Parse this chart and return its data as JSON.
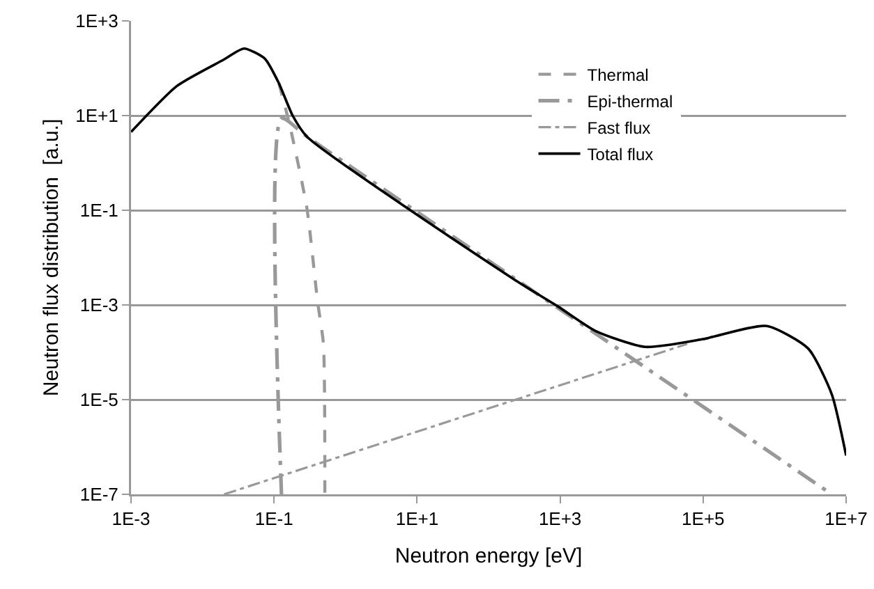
{
  "chart_data": {
    "type": "line",
    "xlabel": "Neutron energy [eV]",
    "ylabel": "Neutron flux distribution  [a.u.]",
    "log": "xy",
    "grid": "y",
    "legend": "top right",
    "marker": "none",
    "xlim": [
      0.001,
      10000000
    ],
    "ylim": [
      1e-07,
      1000
    ],
    "xticks": [
      {
        "value": 0.001,
        "label": "1E-3"
      },
      {
        "value": 0.1,
        "label": "1E-1"
      },
      {
        "value": 10,
        "label": "1E+1"
      },
      {
        "value": 1000,
        "label": "1E+3"
      },
      {
        "value": 100000,
        "label": "1E+5"
      },
      {
        "value": 10000000,
        "label": "1E+7"
      }
    ],
    "yticks": [
      {
        "value": 1e-07,
        "label": "1E-7"
      },
      {
        "value": 1e-05,
        "label": "1E-5"
      },
      {
        "value": 0.001,
        "label": "1E-3"
      },
      {
        "value": 0.1,
        "label": "1E-1"
      },
      {
        "value": 10,
        "label": "1E+1"
      },
      {
        "value": 1000,
        "label": "1E+3"
      }
    ],
    "series": [
      {
        "name": "Thermal",
        "color": "#999999",
        "line_style": "dashed",
        "x": [
          0.117,
          0.166,
          0.288,
          0.407,
          0.49,
          0.513
        ],
        "values": [
          48,
          6.2,
          0.11,
          0.00115,
          0.00015,
          1e-07
        ]
      },
      {
        "name": "Epi-thermal",
        "color": "#999999",
        "line_style": "longdashdot",
        "x": [
          0.127,
          0.127,
          0.288,
          6300000
        ],
        "values": [
          1e-07,
          8.7,
          3.6,
          1e-07
        ]
      },
      {
        "name": "Fast flux",
        "color": "#999999",
        "line_style": "dashdot",
        "x": [
          0.02,
          60000
        ],
        "values": [
          1e-07,
          0.00015
        ]
      },
      {
        "name": "Total flux",
        "color": "#000000",
        "line_style": "solid",
        "x": [
          0.001,
          0.00437,
          0.0195,
          0.038,
          0.0741,
          0.117,
          0.182,
          0.288,
          219,
          933,
          3162,
          15500,
          100000,
          776000,
          2950000,
          6300000,
          10000000
        ],
        "values": [
          4.5,
          42,
          150,
          260,
          160,
          48,
          10,
          3.6,
          0.0036,
          0.00093,
          0.00028,
          0.00013,
          0.00019,
          0.00036,
          0.00012,
          1.3e-05,
          6.6e-07
        ]
      }
    ]
  }
}
